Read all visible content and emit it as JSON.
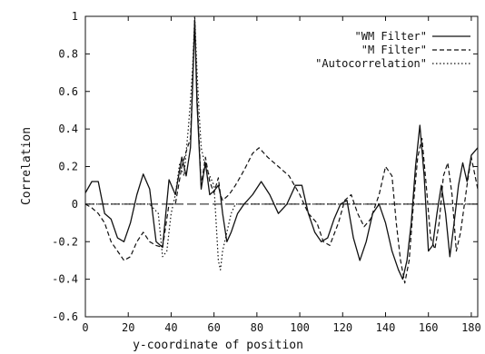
{
  "chart_data": {
    "type": "line",
    "xlabel": "y-coordinate of position",
    "ylabel": "Correlation",
    "xlim": [
      0,
      183
    ],
    "ylim": [
      -0.6,
      1.0
    ],
    "xticks": [
      0,
      20,
      40,
      60,
      80,
      100,
      120,
      140,
      160,
      180
    ],
    "yticks": [
      1,
      0.8,
      0.6,
      0.4,
      0.2,
      0,
      -0.2,
      -0.4,
      -0.6
    ],
    "xtick_labels": [
      "0",
      "20",
      "40",
      "60",
      "80",
      "100",
      "120",
      "140",
      "160",
      "180"
    ],
    "ytick_labels": [
      "1",
      "0.8",
      "0.6",
      "0.4",
      "0.2",
      "0",
      "-0.2",
      "-0.4",
      "-0.6"
    ],
    "grid": false,
    "legend_position": "top-right",
    "series": [
      {
        "name": "\"WM Filter\"",
        "style": "solid",
        "x": [
          0,
          3,
          6,
          9,
          12,
          15,
          18,
          21,
          24,
          27,
          30,
          33,
          36,
          39,
          42,
          45,
          47,
          49,
          50,
          51,
          52,
          54,
          56,
          58,
          60,
          62,
          63,
          64,
          66,
          68,
          71,
          74,
          78,
          82,
          86,
          90,
          94,
          98,
          101,
          104,
          107,
          110,
          113,
          116,
          119,
          122,
          125,
          128,
          131,
          134,
          137,
          140,
          143,
          146,
          148,
          150,
          152,
          154,
          156,
          158,
          160,
          162,
          164,
          166,
          168,
          170,
          172,
          174,
          176,
          178,
          180,
          183
        ],
        "y": [
          0.06,
          0.12,
          0.12,
          -0.05,
          -0.08,
          -0.18,
          -0.2,
          -0.1,
          0.05,
          0.16,
          0.08,
          -0.2,
          -0.23,
          0.13,
          0.05,
          0.25,
          0.15,
          0.3,
          0.62,
          0.98,
          0.55,
          0.08,
          0.22,
          0.05,
          0.07,
          0.1,
          0.05,
          -0.05,
          -0.2,
          -0.15,
          -0.05,
          0.0,
          0.05,
          0.12,
          0.05,
          -0.05,
          0.0,
          0.1,
          0.1,
          -0.05,
          -0.15,
          -0.2,
          -0.18,
          -0.08,
          0.0,
          0.02,
          -0.18,
          -0.3,
          -0.2,
          -0.05,
          0.0,
          -0.1,
          -0.25,
          -0.35,
          -0.4,
          -0.3,
          -0.1,
          0.2,
          0.42,
          0.15,
          -0.25,
          -0.22,
          -0.05,
          0.1,
          -0.05,
          -0.28,
          -0.1,
          0.1,
          0.22,
          0.12,
          0.26,
          0.3
        ]
      },
      {
        "name": "\"M Filter\"",
        "style": "dashed",
        "x": [
          0,
          3,
          6,
          9,
          12,
          15,
          18,
          21,
          24,
          27,
          30,
          33,
          36,
          39,
          42,
          45,
          47,
          49,
          50,
          51,
          52,
          54,
          56,
          58,
          60,
          62,
          63,
          64,
          67,
          70,
          74,
          78,
          81,
          85,
          90,
          95,
          100,
          104,
          108,
          111,
          114,
          118,
          121,
          124,
          127,
          130,
          133,
          137,
          140,
          143,
          145,
          147,
          149,
          151,
          153,
          155,
          157,
          159,
          161,
          163,
          165,
          167,
          169,
          171,
          173,
          175,
          178,
          180,
          183
        ],
        "y": [
          0.0,
          -0.02,
          -0.05,
          -0.1,
          -0.2,
          -0.25,
          -0.3,
          -0.28,
          -0.2,
          -0.15,
          -0.2,
          -0.22,
          -0.23,
          0.0,
          0.0,
          0.2,
          0.28,
          0.35,
          0.65,
          0.98,
          0.6,
          0.1,
          0.25,
          0.12,
          0.06,
          0.14,
          0.05,
          0.02,
          0.05,
          0.1,
          0.18,
          0.27,
          0.3,
          0.25,
          0.2,
          0.15,
          0.05,
          -0.05,
          -0.1,
          -0.2,
          -0.22,
          -0.1,
          0.02,
          0.05,
          -0.05,
          -0.12,
          -0.08,
          0.05,
          0.2,
          0.15,
          -0.1,
          -0.3,
          -0.42,
          -0.3,
          0.0,
          0.25,
          0.35,
          0.1,
          -0.18,
          -0.24,
          -0.1,
          0.15,
          0.22,
          0.05,
          -0.25,
          -0.15,
          0.1,
          0.25,
          0.08
        ]
      },
      {
        "name": "\"Autocorrelation\"",
        "style": "dotted",
        "x": [
          0,
          10,
          20,
          30,
          34,
          36,
          38,
          40,
          42,
          44,
          46,
          48,
          49,
          50,
          51,
          52,
          53,
          54,
          56,
          58,
          60,
          61,
          62,
          63,
          64,
          66,
          68,
          70,
          80,
          90,
          100,
          110,
          120,
          130,
          140,
          150,
          160,
          170,
          183
        ],
        "y": [
          0.0,
          0.0,
          0.0,
          0.0,
          -0.05,
          -0.28,
          -0.25,
          -0.05,
          0.05,
          0.22,
          0.15,
          0.4,
          0.55,
          0.72,
          1.0,
          0.72,
          0.5,
          0.3,
          0.2,
          0.15,
          0.1,
          -0.1,
          -0.3,
          -0.35,
          -0.25,
          -0.15,
          -0.05,
          0.0,
          0.0,
          0.0,
          0.0,
          0.0,
          0.0,
          0.0,
          0.0,
          0.0,
          0.0,
          0.0,
          0.0
        ]
      }
    ]
  }
}
